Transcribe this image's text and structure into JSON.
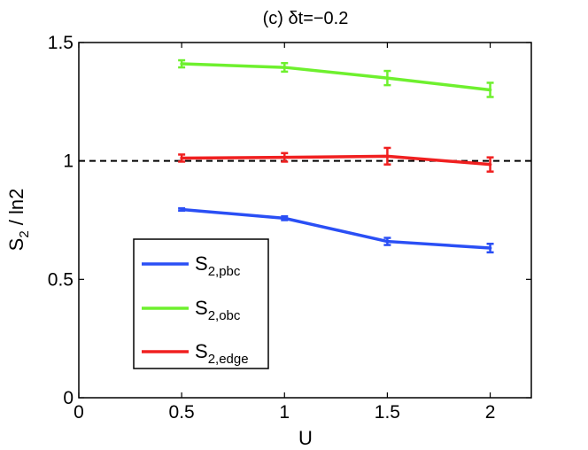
{
  "chart_data": {
    "type": "line",
    "title": "(c) δt=−0.2",
    "xlabel": "U",
    "ylabel": "S",
    "ylabel_sub": "2",
    "ylabel_suffix": " / ln2",
    "xlim": [
      0,
      2.2
    ],
    "ylim": [
      0,
      1.5
    ],
    "xticks": [
      0,
      0.5,
      1,
      1.5,
      2
    ],
    "xtick_labels": [
      "0",
      "0.5",
      "1",
      "1.5",
      "2"
    ],
    "yticks": [
      0,
      0.5,
      1,
      1.5
    ],
    "ytick_labels": [
      "0",
      "0.5",
      "1",
      "1.5"
    ],
    "x": [
      0.5,
      1,
      1.5,
      2
    ],
    "series": [
      {
        "name": "S2,pbc",
        "label_main": "S",
        "label_sub": "2,pbc",
        "color": "#2a4ff5",
        "values": [
          0.795,
          0.758,
          0.66,
          0.632
        ],
        "errors": [
          0.005,
          0.008,
          0.015,
          0.018
        ]
      },
      {
        "name": "S2,obc",
        "label_main": "S",
        "label_sub": "2,obc",
        "color": "#6ef02e",
        "values": [
          1.41,
          1.395,
          1.35,
          1.3
        ],
        "errors": [
          0.015,
          0.018,
          0.03,
          0.03
        ]
      },
      {
        "name": "S2,edge",
        "label_main": "S",
        "label_sub": "2,edge",
        "color": "#f02020",
        "values": [
          1.012,
          1.015,
          1.02,
          0.985
        ],
        "errors": [
          0.015,
          0.018,
          0.035,
          0.03
        ]
      }
    ],
    "reference_line": {
      "y": 1,
      "style": "dashed",
      "color": "#000000"
    },
    "legend_position": "lower-left",
    "grid": false
  }
}
